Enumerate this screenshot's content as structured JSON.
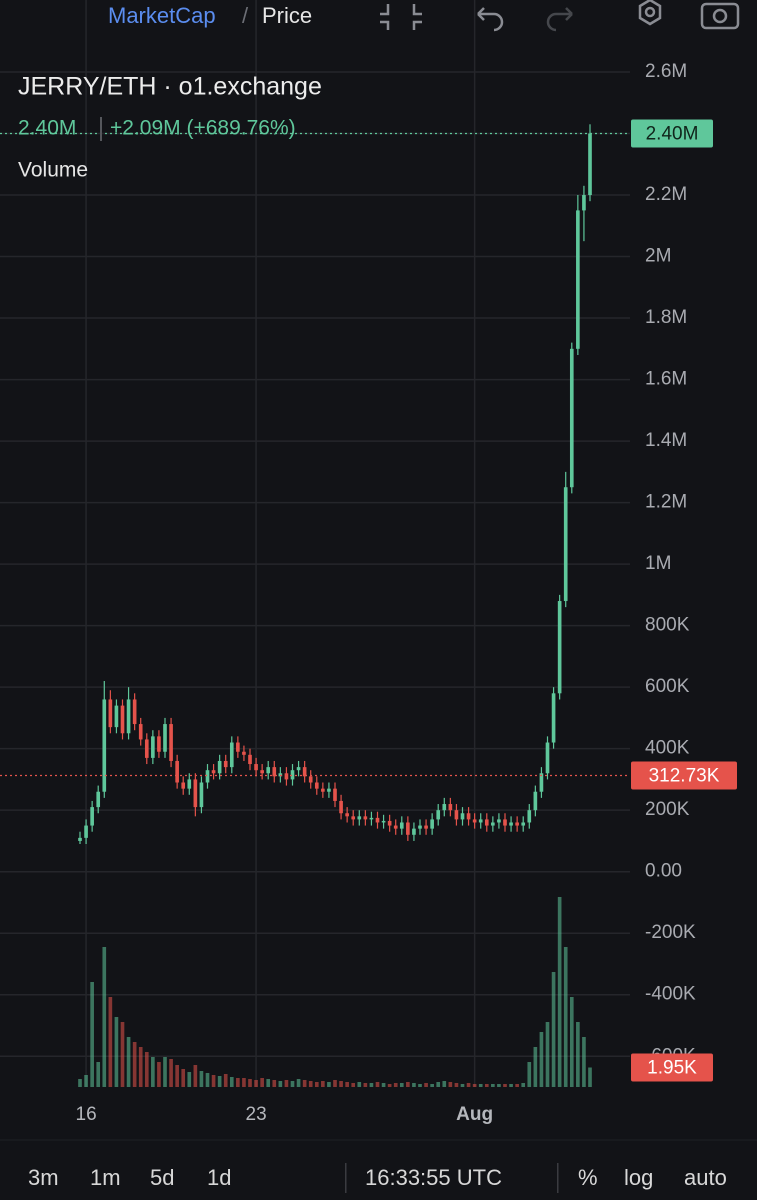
{
  "toolbar": {
    "tabs": [
      "MarketCap",
      "Price"
    ]
  },
  "chart_data": {
    "type": "candlestick",
    "title": "JERRY/ETH · o1.exchange",
    "last_label": "2.40M",
    "change_label": "+2.09M (+689.76%)",
    "volume_title": "Volume",
    "categories": [
      null,
      "16",
      null,
      null,
      null,
      null,
      null,
      null,
      null,
      null,
      null,
      null,
      null,
      null,
      null,
      null,
      null,
      null,
      null,
      null,
      null,
      null,
      null,
      null,
      null,
      null,
      null,
      null,
      null,
      "23",
      null,
      null,
      null,
      null,
      null,
      null,
      null,
      null,
      null,
      null,
      null,
      null,
      null,
      null,
      null,
      null,
      null,
      null,
      null,
      null,
      null,
      null,
      null,
      null,
      null,
      null,
      null,
      null,
      null,
      null,
      null,
      null,
      null,
      null,
      null,
      "Aug",
      null,
      null,
      null,
      null,
      null,
      null,
      null,
      null,
      null,
      null,
      null,
      null,
      null,
      null,
      null,
      null,
      null,
      null,
      null
    ],
    "open": [
      100000,
      110000,
      150000,
      210000,
      260000,
      560000,
      470000,
      540000,
      450000,
      560000,
      480000,
      430000,
      370000,
      440000,
      390000,
      480000,
      360000,
      290000,
      270000,
      300000,
      210000,
      290000,
      330000,
      320000,
      360000,
      340000,
      420000,
      390000,
      380000,
      350000,
      330000,
      320000,
      340000,
      310000,
      320000,
      300000,
      330000,
      340000,
      310000,
      290000,
      270000,
      260000,
      270000,
      230000,
      190000,
      180000,
      170000,
      180000,
      170000,
      175000,
      160000,
      165000,
      150000,
      140000,
      160000,
      120000,
      140000,
      150000,
      140000,
      170000,
      200000,
      220000,
      200000,
      170000,
      190000,
      170000,
      160000,
      170000,
      150000,
      160000,
      170000,
      150000,
      160000,
      150000,
      160000,
      200000,
      260000,
      320000,
      420000,
      580000,
      880000,
      1250000,
      1700000,
      2150000,
      2200000
    ],
    "high": [
      130000,
      170000,
      230000,
      280000,
      620000,
      590000,
      560000,
      560000,
      600000,
      580000,
      500000,
      450000,
      460000,
      460000,
      500000,
      500000,
      380000,
      310000,
      320000,
      320000,
      310000,
      350000,
      350000,
      380000,
      380000,
      440000,
      440000,
      410000,
      400000,
      370000,
      350000,
      360000,
      360000,
      340000,
      340000,
      350000,
      360000,
      360000,
      330000,
      310000,
      290000,
      290000,
      290000,
      250000,
      210000,
      200000,
      200000,
      200000,
      195000,
      195000,
      185000,
      185000,
      170000,
      180000,
      180000,
      160000,
      170000,
      170000,
      190000,
      220000,
      240000,
      240000,
      220000,
      210000,
      210000,
      190000,
      190000,
      190000,
      180000,
      190000,
      190000,
      180000,
      180000,
      180000,
      220000,
      280000,
      340000,
      440000,
      600000,
      900000,
      1300000,
      1720000,
      2200000,
      2230000,
      2430000
    ],
    "low": [
      90000,
      90000,
      130000,
      190000,
      240000,
      450000,
      450000,
      430000,
      430000,
      460000,
      410000,
      350000,
      350000,
      370000,
      370000,
      340000,
      270000,
      250000,
      250000,
      180000,
      190000,
      270000,
      300000,
      300000,
      320000,
      320000,
      370000,
      360000,
      330000,
      310000,
      300000,
      300000,
      290000,
      290000,
      280000,
      280000,
      310000,
      290000,
      270000,
      250000,
      240000,
      240000,
      210000,
      170000,
      160000,
      150000,
      150000,
      150000,
      150000,
      140000,
      140000,
      130000,
      120000,
      120000,
      100000,
      100000,
      120000,
      120000,
      120000,
      150000,
      180000,
      180000,
      150000,
      150000,
      150000,
      140000,
      140000,
      130000,
      130000,
      140000,
      130000,
      130000,
      130000,
      130000,
      140000,
      180000,
      240000,
      300000,
      400000,
      560000,
      860000,
      1230000,
      1680000,
      2050000,
      2180000
    ],
    "close": [
      110000,
      150000,
      210000,
      260000,
      560000,
      470000,
      540000,
      450000,
      560000,
      480000,
      430000,
      370000,
      440000,
      390000,
      480000,
      360000,
      290000,
      270000,
      300000,
      210000,
      290000,
      330000,
      320000,
      360000,
      340000,
      420000,
      390000,
      380000,
      350000,
      330000,
      320000,
      340000,
      310000,
      320000,
      300000,
      330000,
      340000,
      310000,
      290000,
      270000,
      260000,
      270000,
      230000,
      190000,
      180000,
      170000,
      180000,
      170000,
      175000,
      160000,
      165000,
      150000,
      140000,
      160000,
      120000,
      140000,
      150000,
      140000,
      170000,
      200000,
      220000,
      200000,
      170000,
      190000,
      170000,
      160000,
      170000,
      150000,
      160000,
      170000,
      150000,
      160000,
      150000,
      160000,
      200000,
      260000,
      320000,
      420000,
      580000,
      880000,
      1250000,
      1700000,
      2150000,
      2200000,
      2400000
    ],
    "volume": [
      800,
      1200,
      10500,
      2500,
      14000,
      9000,
      7000,
      6500,
      5000,
      4500,
      4000,
      3500,
      3000,
      2500,
      3000,
      2800,
      2200,
      1800,
      1500,
      2200,
      1600,
      1400,
      1200,
      1100,
      1300,
      1000,
      900,
      900,
      800,
      700,
      900,
      800,
      700,
      600,
      700,
      600,
      800,
      700,
      600,
      500,
      600,
      500,
      700,
      600,
      500,
      400,
      500,
      400,
      400,
      500,
      400,
      300,
      400,
      400,
      500,
      400,
      300,
      400,
      300,
      500,
      600,
      500,
      400,
      300,
      400,
      300,
      300,
      300,
      300,
      300,
      300,
      300,
      300,
      400,
      2500,
      4000,
      5500,
      6500,
      11500,
      19000,
      14000,
      9000,
      6500,
      5000,
      1950
    ],
    "volume_value_label": "1.95K",
    "ylim": [
      -700000,
      2600000
    ],
    "yticks": [
      {
        "value": 2600000,
        "label": "2.6M"
      },
      {
        "value": 2400000,
        "label": "2.4M"
      },
      {
        "value": 2200000,
        "label": "2.2M"
      },
      {
        "value": 2000000,
        "label": "2M"
      },
      {
        "value": 1800000,
        "label": "1.8M"
      },
      {
        "value": 1600000,
        "label": "1.6M"
      },
      {
        "value": 1400000,
        "label": "1.4M"
      },
      {
        "value": 1200000,
        "label": "1.2M"
      },
      {
        "value": 1000000,
        "label": "1M"
      },
      {
        "value": 800000,
        "label": "800K"
      },
      {
        "value": 600000,
        "label": "600K"
      },
      {
        "value": 400000,
        "label": "400K"
      },
      {
        "value": 200000,
        "label": "200K"
      },
      {
        "value": 0,
        "label": "0.00"
      },
      {
        "value": -200000,
        "label": "-200K"
      },
      {
        "value": -400000,
        "label": "-400K"
      },
      {
        "value": -600000,
        "label": "-600K"
      }
    ],
    "y2lim": [
      0,
      20000
    ],
    "price_lines": [
      {
        "value": 2400000,
        "label": "2.40M",
        "color": "#5fc79b"
      },
      {
        "value": 312730,
        "label": "312.73K",
        "color": "#e5534b"
      }
    ],
    "up_color": "#5fc79b",
    "down_color": "#e5534b",
    "grid": true
  },
  "bottom_bar": {
    "timeframes": [
      "3m",
      "1m",
      "5d",
      "1d"
    ],
    "clock": "16:33:55 UTC",
    "scale_options": [
      "%",
      "log",
      "auto"
    ]
  }
}
